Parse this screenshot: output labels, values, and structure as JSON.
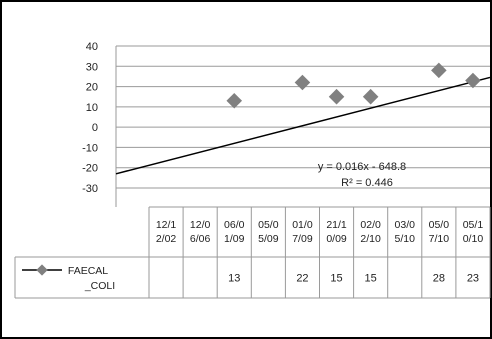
{
  "chart_data": {
    "type": "scatter",
    "categories": [
      "12/1\n2/02",
      "12/0\n6/06",
      "06/0\n1/09",
      "05/0\n5/09",
      "01/0\n7/09",
      "21/1\n0/09",
      "02/0\n2/10",
      "03/0\n5/10",
      "05/0\n7/10",
      "05/1\n0/10"
    ],
    "series": [
      {
        "name": "FAECAL\n_COLI",
        "values": [
          null,
          null,
          13,
          null,
          22,
          15,
          15,
          null,
          28,
          23
        ],
        "color": "#808080"
      }
    ],
    "trendline": {
      "equation": "y = 0.016x - 648.8",
      "r_squared": "R² = 0.446",
      "start_y": -23,
      "end_y": 24.5
    },
    "ylim": [
      -30,
      40
    ],
    "yticks": [
      40,
      30,
      20,
      10,
      0,
      -10,
      -20,
      -30
    ],
    "grid": true,
    "legend": "data-table-left"
  }
}
